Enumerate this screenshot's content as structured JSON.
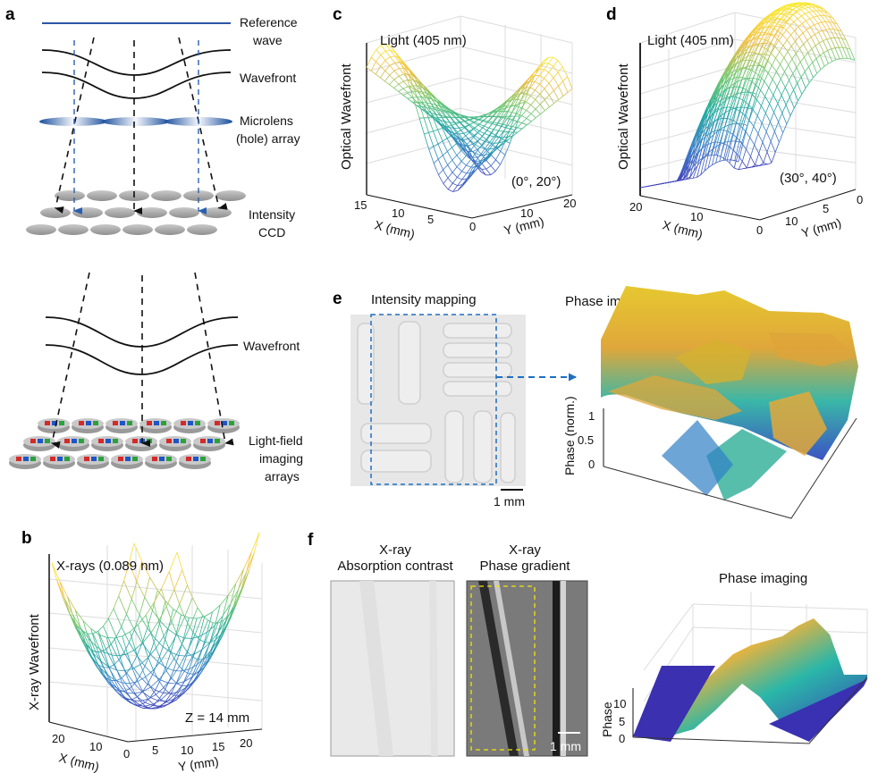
{
  "panels": {
    "a": {
      "label": "a",
      "top": {
        "reference_wave": [
          "Reference",
          "wave"
        ],
        "wavefront": "Wavefront",
        "microlens": [
          "Microlens",
          "(hole) array"
        ],
        "sensor": [
          "Intensity",
          "CCD"
        ]
      },
      "bottom": {
        "wavefront": "Wavefront",
        "sensor": [
          "Light-field",
          "imaging",
          "arrays"
        ]
      }
    },
    "b": {
      "label": "b",
      "title": "X-rays (0.089 nm)",
      "zlabel": "X-ray Wavefront",
      "xlabel": "X (mm)",
      "ylabel": "Y (mm)",
      "xticks": [
        "20",
        "10"
      ],
      "yticks": [
        "0",
        "5",
        "10",
        "15",
        "20"
      ],
      "annotation": "Z = 14 mm"
    },
    "c": {
      "label": "c",
      "title": "Light (405 nm)",
      "zlabel": "Optical Wavefront",
      "xlabel": "X (mm)",
      "ylabel": "Y (mm)",
      "xticks": [
        "15",
        "10",
        "5"
      ],
      "yticks": [
        "0",
        "10",
        "20"
      ],
      "annotation": "(0°, 20°)"
    },
    "d": {
      "label": "d",
      "title": "Light (405 nm)",
      "zlabel": "Optical Wavefront",
      "xlabel": "X (mm)",
      "ylabel": "Y (mm)",
      "xticks": [
        "20",
        "10",
        "0"
      ],
      "yticks": [
        "10",
        "5",
        "0"
      ],
      "annotation": "(30°, 40°)"
    },
    "e": {
      "label": "e",
      "left_title": "Intensity mapping",
      "scale_bar": "1 mm",
      "right_title": "Phase imaging",
      "zlabel": "Phase (norm.)",
      "zticks": [
        "1",
        "0.5",
        "0"
      ]
    },
    "f": {
      "label": "f",
      "img1_title": [
        "X-ray",
        "Absorption contrast"
      ],
      "img2_title": [
        "X-ray",
        "Phase gradient"
      ],
      "scale_bar": "1 mm",
      "plot_title": "Phase imaging",
      "zlabel": "Phase",
      "zticks": [
        "10",
        "5",
        "0"
      ]
    }
  },
  "colors": {
    "reference_wave": "#2a56a6",
    "arrow_blue": "#2a5fb0",
    "selection_box": "#1f6fc0",
    "yellow_box": "#f2e600"
  }
}
